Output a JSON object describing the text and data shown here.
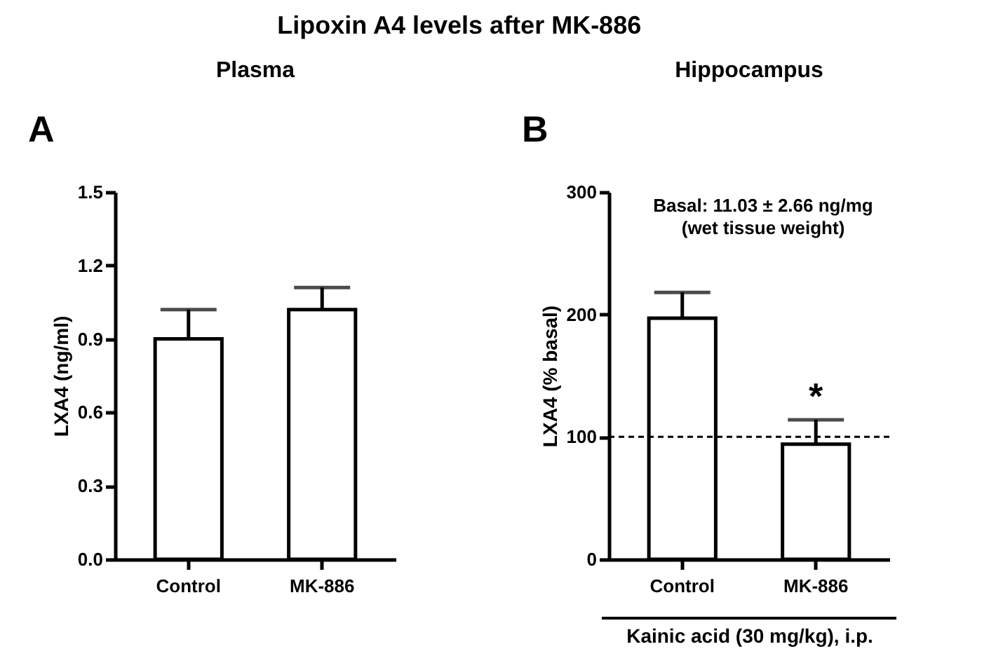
{
  "chart_data": [
    {
      "type": "bar",
      "title": "Plasma",
      "ylabel": "LXA4 (ng/ml)",
      "categories": [
        "Control",
        "MK-886"
      ],
      "series": [
        {
          "color": "#ffffff",
          "values": [
            0.9,
            1.02
          ],
          "errors": [
            [
              0.9,
              1.02
            ],
            [
              1.02,
              1.11
            ]
          ]
        }
      ],
      "ylim": [
        0,
        1.5
      ],
      "yticks": [
        {
          "value": 0,
          "label": "0.0"
        },
        0.3,
        0.6,
        0.9,
        1.2,
        1.5
      ],
      "annotations": [
        "Lipoxin A4 levels after MK-886",
        "A"
      ]
    },
    {
      "type": "bar",
      "title": "Hippocampus",
      "ylabel": "LXA4 (% basal)",
      "xlabel": "Kainic acid (30 mg/kg), i.p.",
      "categories": [
        "Control",
        "MK-886"
      ],
      "series": [
        {
          "color": "#ffffff",
          "values": [
            197,
            94
          ],
          "errors": [
            [
              197,
              218
            ],
            [
              94,
              114
            ]
          ]
        }
      ],
      "ylim": [
        0,
        300
      ],
      "yticks": [
        0,
        100,
        200,
        300
      ],
      "ref_lines": [
        {
          "axis": "y",
          "value": 100,
          "line_style": "dashed"
        }
      ],
      "annotations": [
        "B",
        "Basal: 11.03 ± 2.66 ng/mg\n(wet tissue weight)",
        {
          "text": "*",
          "x": "MK-886",
          "y": 114
        }
      ]
    }
  ]
}
